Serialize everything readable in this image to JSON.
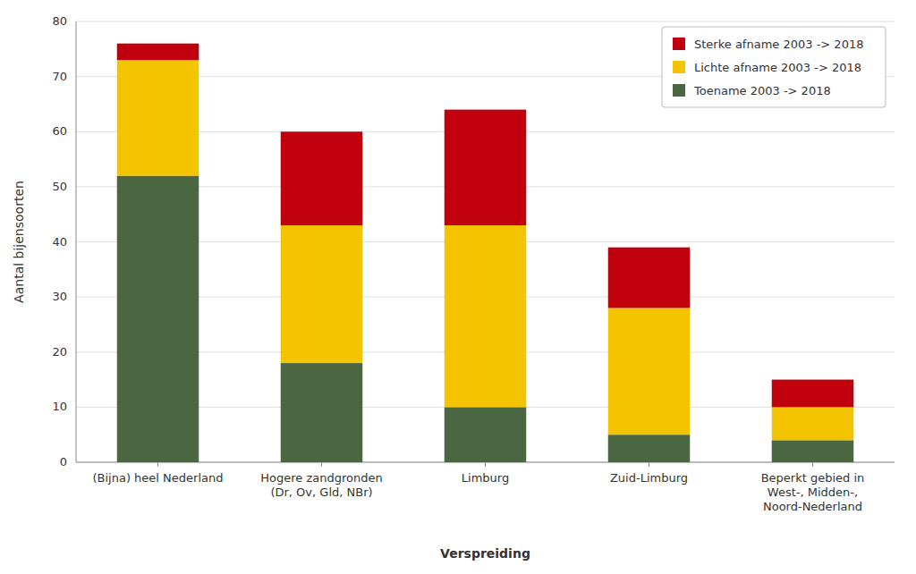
{
  "chart_data": {
    "type": "bar",
    "stacked": true,
    "categories": [
      "(Bijna) heel Nederland",
      "Hogere zandgronden\n(Dr, Ov, Gld, NBr)",
      "Limburg",
      "Zuid-Limburg",
      "Beperkt gebied in\nWest-, Midden-,\nNoord-Nederland"
    ],
    "series": [
      {
        "name": "Toename 2003 -> 2018",
        "color": "#4a6741",
        "values": [
          52,
          18,
          10,
          5,
          4
        ]
      },
      {
        "name": "Lichte afname 2003 -> 2018",
        "color": "#f5c400",
        "values": [
          21,
          25,
          33,
          23,
          6
        ]
      },
      {
        "name": "Sterke afname 2003 -> 2018",
        "color": "#c0000c",
        "values": [
          3,
          17,
          21,
          11,
          5
        ]
      }
    ],
    "xlabel": "Verspreiding",
    "ylabel": "Aantal bijensoorten",
    "ylim": [
      0,
      80
    ],
    "yticks": [
      0,
      10,
      20,
      30,
      40,
      50,
      60,
      70,
      80
    ],
    "grid": true,
    "legend": "upper right"
  }
}
